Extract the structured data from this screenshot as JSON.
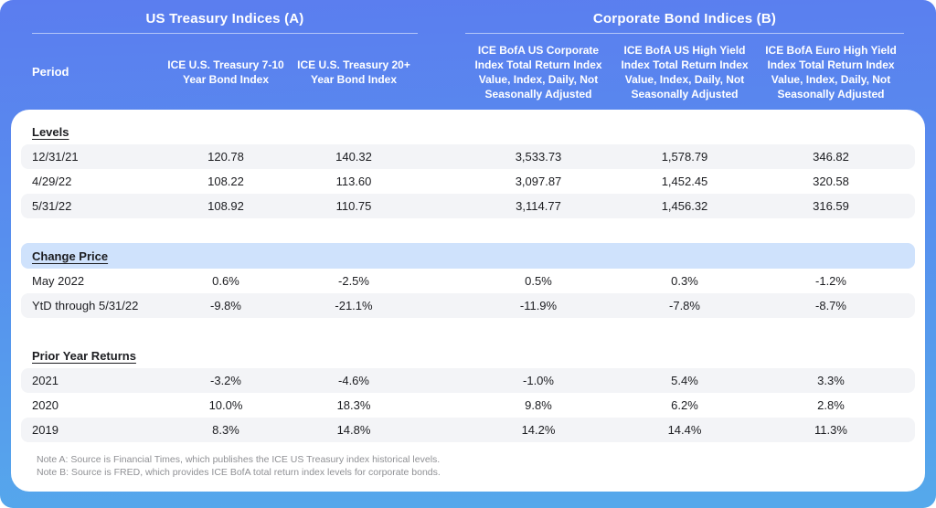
{
  "header": {
    "left_group_title": "US Treasury Indices (A)",
    "right_group_title": "Corporate Bond Indices (B)",
    "period_label": "Period",
    "columns": [
      "ICE U.S. Treasury 7-10 Year Bond Index",
      "ICE U.S. Treasury 20+ Year Bond Index",
      "ICE BofA US Corporate Index Total Return Index Value, Index, Daily, Not Seasonally Adjusted",
      "ICE BofA US High Yield Index Total Return Index Value, Index, Daily, Not Seasonally Adjusted",
      "ICE BofA Euro High Yield Index Total Return Index Value, Index, Daily, Not Seasonally Adjusted"
    ]
  },
  "chart_data": {
    "type": "table",
    "title": "US Treasury Indices (A) / Corporate Bond Indices (B)",
    "columns": [
      "Period",
      "ICE U.S. Treasury 7-10 Year Bond Index",
      "ICE U.S. Treasury 20+ Year Bond Index",
      "ICE BofA US Corporate Index Total Return Index Value, Index, Daily, Not Seasonally Adjusted",
      "ICE BofA US High Yield Index Total Return Index Value, Index, Daily, Not Seasonally Adjusted",
      "ICE BofA Euro High Yield Index Total Return Index Value, Index, Daily, Not Seasonally Adjusted"
    ],
    "sections": [
      {
        "title": "Levels",
        "highlight": false,
        "rows": [
          {
            "label": "12/31/21",
            "values": [
              "120.78",
              "140.32",
              "3,533.73",
              "1,578.79",
              "346.82"
            ]
          },
          {
            "label": "4/29/22",
            "values": [
              "108.22",
              "113.60",
              "3,097.87",
              "1,452.45",
              "320.58"
            ]
          },
          {
            "label": "5/31/22",
            "values": [
              "108.92",
              "110.75",
              "3,114.77",
              "1,456.32",
              "316.59"
            ]
          }
        ]
      },
      {
        "title": "Change Price",
        "highlight": true,
        "rows": [
          {
            "label": "May 2022",
            "values": [
              "0.6%",
              "-2.5%",
              "0.5%",
              "0.3%",
              "-1.2%"
            ]
          },
          {
            "label": "YtD through 5/31/22",
            "values": [
              "-9.8%",
              "-21.1%",
              "-11.9%",
              "-7.8%",
              "-8.7%"
            ]
          }
        ]
      },
      {
        "title": "Prior Year Returns",
        "highlight": false,
        "rows": [
          {
            "label": "2021",
            "values": [
              "-3.2%",
              "-4.6%",
              "-1.0%",
              "5.4%",
              "3.3%"
            ]
          },
          {
            "label": "2020",
            "values": [
              "10.0%",
              "18.3%",
              "9.8%",
              "6.2%",
              "2.8%"
            ]
          },
          {
            "label": "2019",
            "values": [
              "8.3%",
              "14.8%",
              "14.2%",
              "14.4%",
              "11.3%"
            ]
          }
        ]
      }
    ]
  },
  "notes": [
    "Note A:  Source is Financial Times, which publishes the ICE US Treasury index historical levels.",
    "Note B: Source is FRED, which provides ICE BofA total return index levels for corporate bonds."
  ],
  "colors": {
    "background_top": "#5b7def",
    "background_bottom": "#55a9eb",
    "header_text": "#ffffff",
    "header_underline": "rgba(255,255,255,0.55)",
    "card_background": "#ffffff",
    "row_shaded": "#f3f4f7",
    "highlight_row": "#cfe2fc",
    "body_text": "#1c1d21",
    "note_text": "#8f9094"
  }
}
